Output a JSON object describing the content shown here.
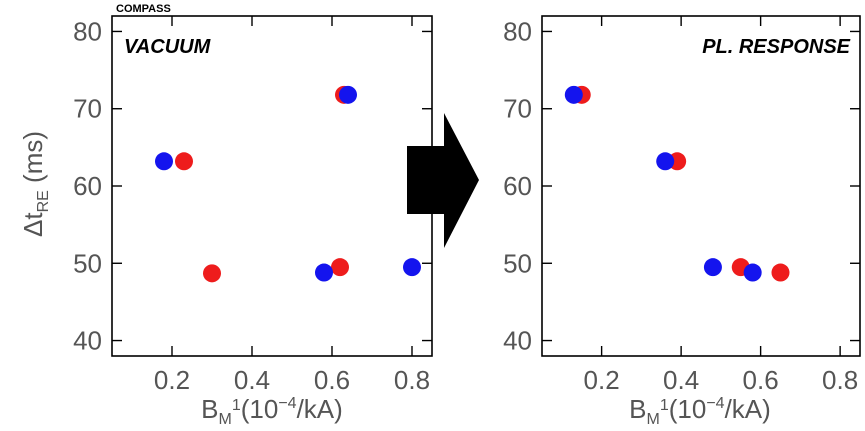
{
  "header": {
    "label": "COMPASS"
  },
  "ylabel": {
    "main": "Δt",
    "sub": "RE",
    "unit": " (ms)"
  },
  "xlabel": {
    "main": "B",
    "sub": "M",
    "sup": "1",
    "unit": "(10",
    "exp": "−4",
    "tail": "/kA)"
  },
  "colors": {
    "red": "#ee1c1c",
    "blue": "#1414ee",
    "axis": "#000000",
    "arrow": "#000000"
  },
  "chart_data": [
    {
      "type": "scatter",
      "title": "VACUUM",
      "xlim": [
        0.05,
        0.85
      ],
      "ylim": [
        38,
        82
      ],
      "xticks": [
        0.2,
        0.4,
        0.6,
        0.8
      ],
      "xtick_labels": [
        "0.2",
        "0.4",
        "0.6",
        "0.8"
      ],
      "yticks": [
        40,
        50,
        60,
        70,
        80
      ],
      "ytick_labels": [
        "40",
        "50",
        "60",
        "70",
        "80"
      ],
      "series": [
        {
          "color": "red",
          "points": [
            [
              0.63,
              71.8
            ],
            [
              0.23,
              63.2
            ],
            [
              0.3,
              48.7
            ],
            [
              0.62,
              49.5
            ]
          ]
        },
        {
          "color": "blue",
          "points": [
            [
              0.64,
              71.8
            ],
            [
              0.18,
              63.2
            ],
            [
              0.58,
              48.8
            ],
            [
              0.8,
              49.5
            ]
          ]
        }
      ]
    },
    {
      "type": "scatter",
      "title": "PL. RESPONSE",
      "xlim": [
        0.05,
        0.85
      ],
      "ylim": [
        38,
        82
      ],
      "xticks": [
        0.2,
        0.4,
        0.6,
        0.8
      ],
      "xtick_labels": [
        "0.2",
        "0.4",
        "0.6",
        "0.8"
      ],
      "yticks": [
        40,
        50,
        60,
        70,
        80
      ],
      "ytick_labels": [
        "40",
        "50",
        "60",
        "70",
        "80"
      ],
      "series": [
        {
          "color": "red",
          "points": [
            [
              0.15,
              71.8
            ],
            [
              0.39,
              63.2
            ],
            [
              0.55,
              49.5
            ],
            [
              0.65,
              48.8
            ]
          ]
        },
        {
          "color": "blue",
          "points": [
            [
              0.13,
              71.8
            ],
            [
              0.36,
              63.2
            ],
            [
              0.48,
              49.5
            ],
            [
              0.58,
              48.8
            ]
          ]
        }
      ]
    }
  ]
}
